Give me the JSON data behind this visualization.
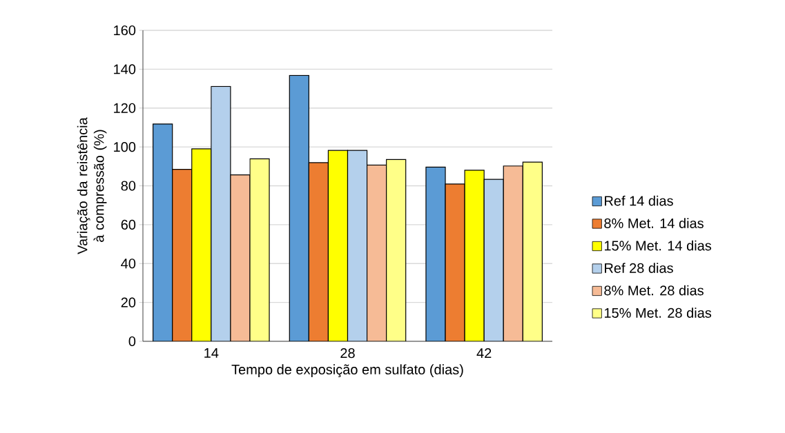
{
  "chart_data": {
    "type": "bar",
    "xlabel": "Tempo de exposição em sulfato (dias)",
    "ylabel": "Variação da reistência à compressão (%)",
    "categories": [
      "14",
      "28",
      "42"
    ],
    "series": [
      {
        "name": "Ref 14 dias",
        "color": "#5b9bd5",
        "values": [
          111.8,
          136.8,
          89.6
        ]
      },
      {
        "name": "8% Met. 14 dias",
        "color": "#ed7d31",
        "values": [
          88.5,
          91.9,
          80.9
        ]
      },
      {
        "name": "15% Met. 14 dias",
        "color": "#ffff00",
        "values": [
          99.0,
          98.2,
          88.0
        ]
      },
      {
        "name": "Ref 28 dias",
        "color": "#b4d0ec",
        "values": [
          131.1,
          98.2,
          83.3
        ]
      },
      {
        "name": "8% Met. 28 dias",
        "color": "#f6bb96",
        "values": [
          85.6,
          90.7,
          90.2
        ]
      },
      {
        "name": "15% Met. 28 dias",
        "color": "#ffff88",
        "values": [
          93.9,
          93.5,
          92.2
        ]
      }
    ],
    "ylim": [
      0,
      160
    ],
    "yticks": [
      0,
      20,
      40,
      60,
      80,
      100,
      120,
      140,
      160
    ],
    "grid": "y",
    "legend": "right"
  }
}
